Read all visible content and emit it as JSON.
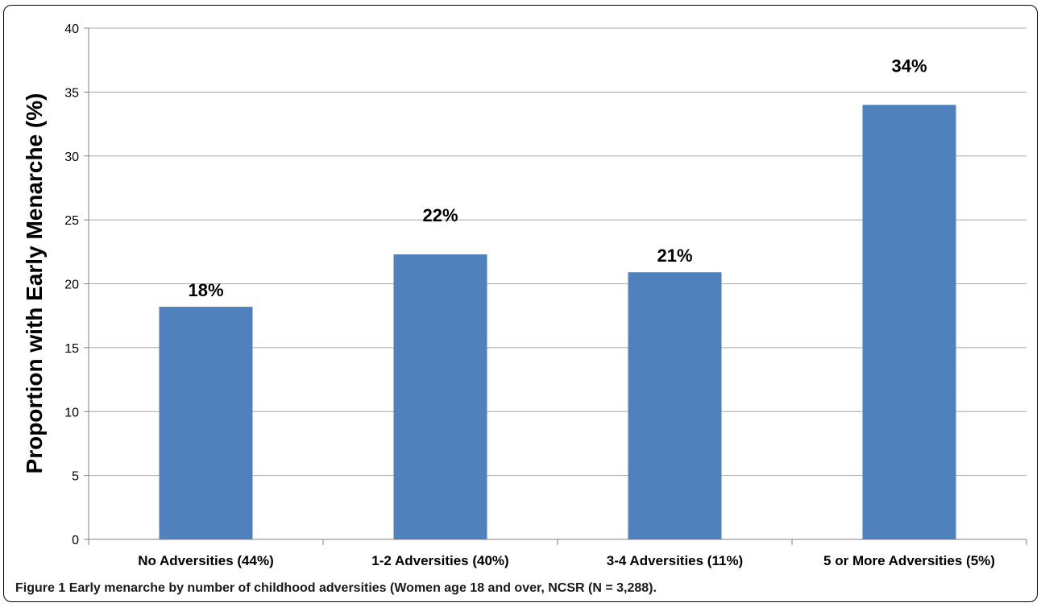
{
  "caption": {
    "label": "Figure 1",
    "text": "Early menarche by number of childhood adversities (Women age 18 and over, NCSR (N = 3,288)."
  },
  "colors": {
    "bar": "#4f81bd",
    "grid": "#a6a6a6",
    "axis": "#808080",
    "text": "#000000"
  },
  "chart_data": {
    "type": "bar",
    "ylabel": "Proportion with Early Menarche (%)",
    "xlabel": "",
    "ylim": [
      0,
      40
    ],
    "yticks": [
      "0",
      "5",
      "10",
      "15",
      "20",
      "25",
      "30",
      "35",
      "40"
    ],
    "grid": true,
    "legend": "none",
    "categories": [
      "No Adversities (44%)",
      "1-2 Adversities (40%)",
      "3-4 Adversities (11%)",
      "5 or More Adversities (5%)"
    ],
    "values": [
      18.2,
      22.3,
      20.9,
      34.0
    ],
    "data_labels": [
      "18%",
      "22%",
      "21%",
      "34%"
    ]
  }
}
